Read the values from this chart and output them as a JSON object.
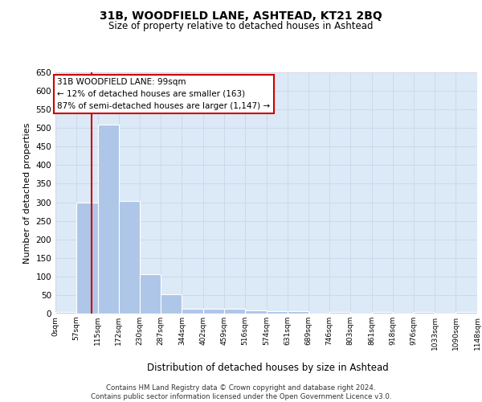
{
  "title1": "31B, WOODFIELD LANE, ASHTEAD, KT21 2BQ",
  "title2": "Size of property relative to detached houses in Ashtead",
  "xlabel": "Distribution of detached houses by size in Ashtead",
  "ylabel": "Number of detached properties",
  "bin_edges": [
    0,
    57,
    115,
    172,
    230,
    287,
    344,
    402,
    459,
    516,
    574,
    631,
    689,
    746,
    803,
    861,
    918,
    976,
    1033,
    1090,
    1148
  ],
  "bar_heights": [
    5,
    298,
    510,
    303,
    107,
    53,
    13,
    14,
    13,
    9,
    7,
    6,
    0,
    5,
    0,
    4,
    0,
    4,
    0,
    4
  ],
  "bar_color": "#aec6e8",
  "grid_color": "#d0d8e8",
  "background_color": "#dce9f7",
  "property_size": 99,
  "property_line_color": "#cc0000",
  "annotation_text": "31B WOODFIELD LANE: 99sqm\n← 12% of detached houses are smaller (163)\n87% of semi-detached houses are larger (1,147) →",
  "annotation_box_color": "#ffffff",
  "annotation_box_edge": "#cc0000",
  "ylim": [
    0,
    650
  ],
  "yticks": [
    0,
    50,
    100,
    150,
    200,
    250,
    300,
    350,
    400,
    450,
    500,
    550,
    600,
    650
  ],
  "footer_text": "Contains HM Land Registry data © Crown copyright and database right 2024.\nContains public sector information licensed under the Open Government Licence v3.0.",
  "tick_labels": [
    "0sqm",
    "57sqm",
    "115sqm",
    "172sqm",
    "230sqm",
    "287sqm",
    "344sqm",
    "402sqm",
    "459sqm",
    "516sqm",
    "574sqm",
    "631sqm",
    "689sqm",
    "746sqm",
    "803sqm",
    "861sqm",
    "918sqm",
    "976sqm",
    "1033sqm",
    "1090sqm",
    "1148sqm"
  ]
}
